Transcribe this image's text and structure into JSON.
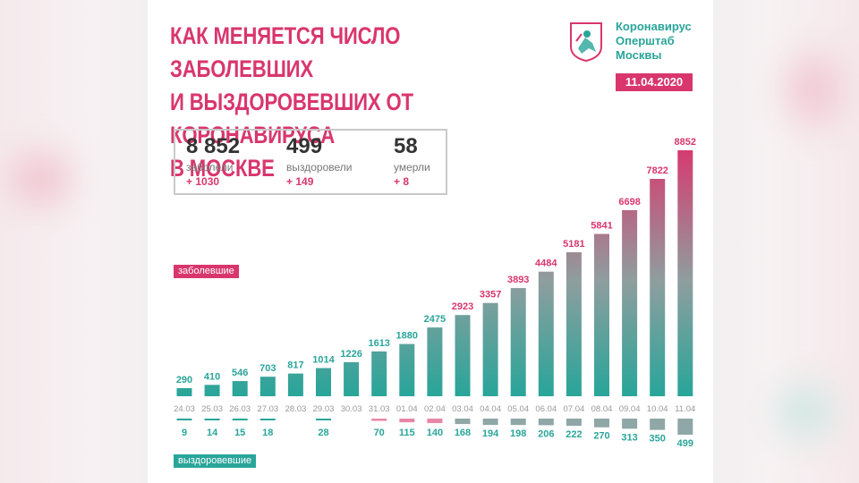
{
  "header": {
    "title_lines": [
      "КАК МЕНЯЕТСЯ ЧИСЛО ЗАБОЛЕВШИХ",
      "И ВЫЗДОРОВЕВШИХ ОТ КОРОНАВИРУСА",
      "В МОСКВЕ"
    ],
    "org_lines": [
      "Коронавирус",
      "Оперштаб",
      "Москвы"
    ],
    "date": "11.04.2020"
  },
  "stats": {
    "sick": {
      "value": "8 852",
      "label": "заболели",
      "delta": "+ 1030"
    },
    "recovered": {
      "value": "499",
      "label": "выздоровели",
      "delta": "+ 149"
    },
    "died": {
      "value": "58",
      "label": "умерли",
      "delta": "+ 8"
    }
  },
  "legend": {
    "sick": "заболевшие",
    "recovered": "выздоровевшие"
  },
  "colors": {
    "accent_pink": "#d9366e",
    "accent_teal": "#2aa59a",
    "date_text": "#999999"
  },
  "chart_data": {
    "type": "bar",
    "categories": [
      "24.03",
      "25.03",
      "26.03",
      "27.03",
      "28.03",
      "29.03",
      "30.03",
      "31.03",
      "01.04",
      "02.04",
      "03.04",
      "04.04",
      "05.04",
      "06.04",
      "07.04",
      "08.04",
      "09.04",
      "10.04",
      "11.04"
    ],
    "series": [
      {
        "name": "заболевшие",
        "values": [
          290,
          410,
          546,
          703,
          817,
          1014,
          1226,
          1613,
          1880,
          2475,
          2923,
          3357,
          3893,
          4484,
          5181,
          5841,
          6698,
          7822,
          8852
        ]
      },
      {
        "name": "выздоровевшие",
        "values": [
          9,
          14,
          15,
          18,
          null,
          28,
          null,
          70,
          115,
          140,
          168,
          194,
          198,
          206,
          222,
          270,
          313,
          350,
          499
        ]
      }
    ],
    "grid": false
  }
}
